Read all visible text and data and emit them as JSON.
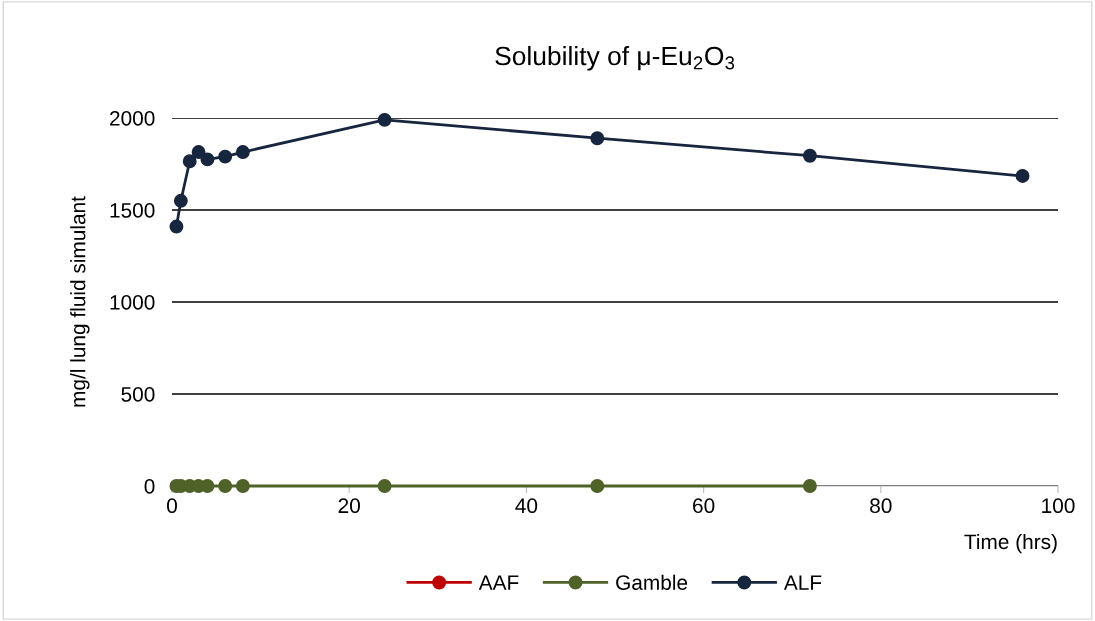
{
  "chart_data": {
    "type": "line",
    "title": "Solubility of μ-Eu$_{2}$O$_{3}$",
    "xlabel": "Time (hrs)",
    "ylabel": "mg/l lung fluid simulant",
    "xlim": [
      0,
      100
    ],
    "xticks": [
      0,
      20,
      40,
      60,
      80,
      100
    ],
    "ylim": [
      0,
      2000
    ],
    "yticks": [
      0,
      500,
      1000,
      1500,
      2000
    ],
    "grid": "y",
    "legend": "bottom",
    "marker": "circle",
    "line_style": "solid",
    "series": [
      {
        "name": "AAF",
        "color": "#c00000"
      },
      {
        "name": "Gamble",
        "color": "#4f6228",
        "x": [
          0.5,
          1,
          2,
          3,
          4,
          6,
          8,
          24,
          48,
          72
        ],
        "values": [
          0,
          0,
          0,
          0,
          0,
          0,
          0,
          0,
          0,
          0
        ]
      },
      {
        "name": "ALF",
        "color": "#17263f",
        "x": [
          0.5,
          1,
          2,
          3,
          4,
          6,
          8,
          24,
          48,
          72,
          96
        ],
        "values": [
          1410,
          1550,
          1765,
          1815,
          1775,
          1790,
          1815,
          1990,
          1890,
          1795,
          1685
        ]
      }
    ]
  }
}
